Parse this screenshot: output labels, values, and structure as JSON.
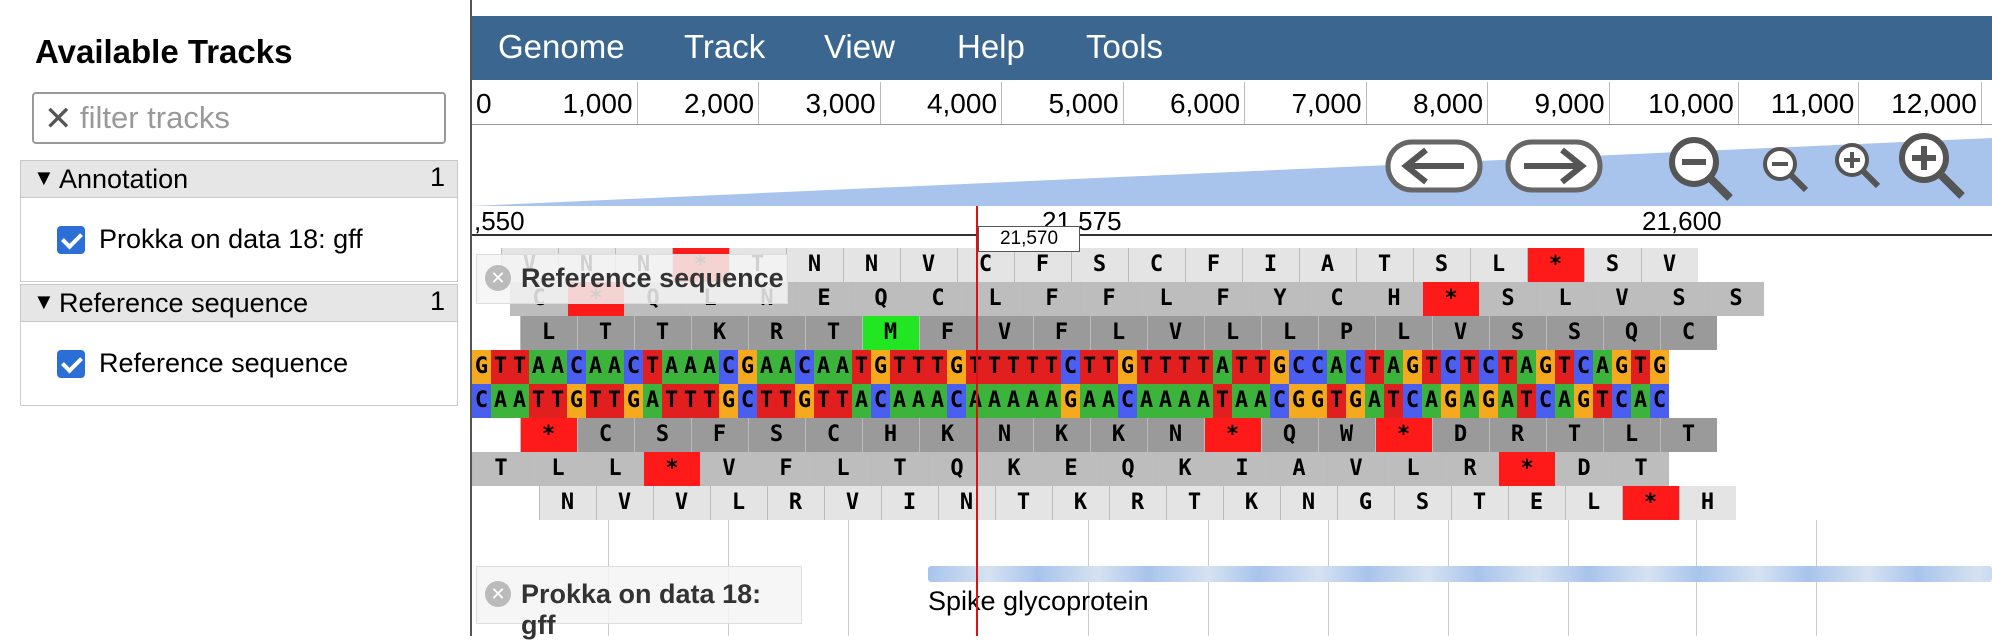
{
  "sidebar": {
    "title": "Available Tracks",
    "filter_placeholder": "filter tracks",
    "categories": [
      {
        "name": "Annotation",
        "count": "1",
        "tracks": [
          "Prokka on data 18: gff"
        ]
      },
      {
        "name": "Reference sequence",
        "count": "1",
        "tracks": [
          "Reference sequence"
        ]
      }
    ]
  },
  "menu": [
    "Genome",
    "Track",
    "View",
    "Help",
    "Tools"
  ],
  "overview_ticks": [
    "0",
    "1,000",
    "2,000",
    "3,000",
    "4,000",
    "5,000",
    "6,000",
    "7,000",
    "8,000",
    "9,000",
    "10,000",
    "11,000",
    "12,000"
  ],
  "ruler_ticks": [
    ",550",
    "21,575",
    "21,600"
  ],
  "position_marker": "21,570",
  "tracks": {
    "reference_label": "Reference sequence",
    "annotation_label": "Prokka on data 18: gff",
    "feature_name": "Spike glycoprotein"
  },
  "sequence": {
    "forward": "GTTAACAACTAAACGAACAATGTTTGTTTTTCTTGTTTTATTGCCACTAGTCTCTAGTCAGTG",
    "reverse": "CAATTGTTGATTTGCTTGTTACAAACAAAAAGAACAAAATAACGGTGATCAGAGATCAGTCAC",
    "frames": [
      {
        "offset": 0,
        "aa": [
          "V",
          "N",
          "N",
          "*",
          "T",
          "N",
          "N",
          "V",
          "C",
          "F",
          "S",
          "C",
          "F",
          "I",
          "A",
          "T",
          "S",
          "L",
          "*",
          "S",
          "V"
        ]
      },
      {
        "offset": 2,
        "aa": [
          "C",
          "*",
          "Q",
          "L",
          "N",
          "E",
          "Q",
          "C",
          "L",
          "F",
          "F",
          "L",
          "F",
          "Y",
          "C",
          "H",
          "*",
          "S",
          "L",
          "V",
          "S",
          "S"
        ]
      },
      {
        "offset": 1,
        "aa": [
          "L",
          "T",
          "T",
          "K",
          "R",
          "T",
          "M",
          "F",
          "V",
          "F",
          "L",
          "V",
          "L",
          "L",
          "P",
          "L",
          "V",
          "S",
          "S",
          "Q",
          "C"
        ]
      },
      {
        "offset": 1,
        "aa": [
          "*",
          "C",
          "S",
          "F",
          "S",
          "C",
          "H",
          "K",
          "N",
          "K",
          "K",
          "N",
          "*",
          "Q",
          "W",
          "*",
          "D",
          "R",
          "T",
          "L",
          "T"
        ]
      },
      {
        "offset": 0,
        "aa": [
          "T",
          "L",
          "L",
          "*",
          "V",
          "F",
          "L",
          "T",
          "Q",
          "K",
          "E",
          "Q",
          "K",
          "I",
          "A",
          "V",
          "L",
          "R",
          "*",
          "D",
          "T"
        ]
      },
      {
        "offset": 2,
        "aa": [
          "N",
          "V",
          "V",
          "L",
          "R",
          "V",
          "I",
          "N",
          "T",
          "K",
          "R",
          "T",
          "K",
          "N",
          "G",
          "S",
          "T",
          "E",
          "L",
          "*",
          "H"
        ]
      }
    ]
  },
  "colors": {
    "A": "#3cb43c",
    "C": "#4a5ff0",
    "G": "#f4a91e",
    "T": "#e21f1f",
    "menubar": "#3a6690",
    "stop": "#ff1a1a",
    "start": "#22e622"
  }
}
